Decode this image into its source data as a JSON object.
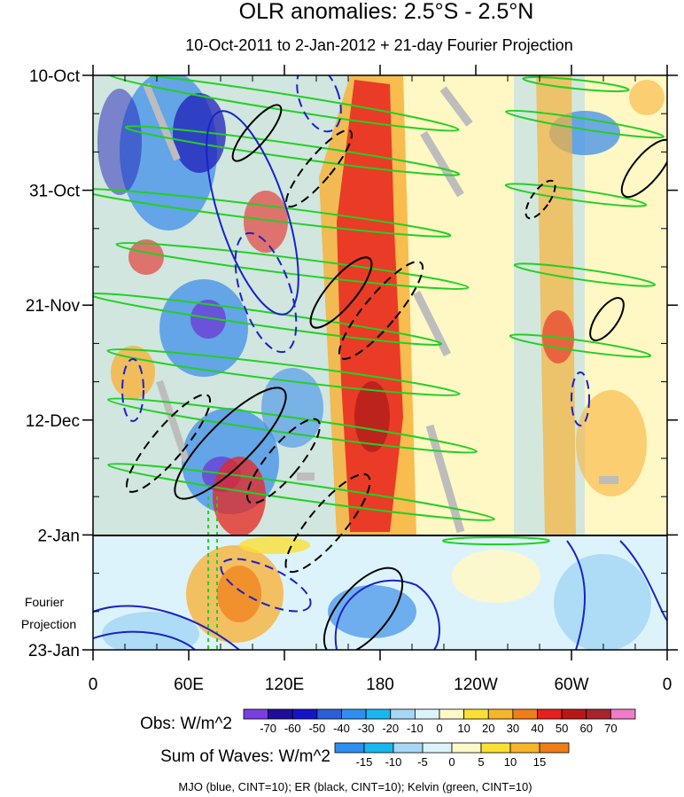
{
  "chart_data": {
    "type": "heatmap",
    "title": "OLR anomalies: 2.5°S - 2.5°N",
    "subtitle": "10-Oct-2011 to 2-Jan-2012 + 21-day Fourier Projection",
    "x_ticks": [
      "0",
      "60E",
      "120E",
      "180",
      "120W",
      "60W",
      "0"
    ],
    "y_ticks": [
      "10-Oct",
      "31-Oct",
      "21-Nov",
      "12-Dec",
      "2-Jan",
      "23-Jan"
    ],
    "projection_label": [
      "Fourier",
      "Projection"
    ],
    "colors": {
      "neg3": "#6a3fd4",
      "neg2": "#1f1fb8",
      "neg1": "#3f8fe8",
      "neg0": "#a9d8f5",
      "pos0": "#fff7bf",
      "pos1": "#f7b23b",
      "pos2": "#e8241f",
      "pos3": "#a81a1a",
      "mjo": "#1a22c8",
      "er": "#000000",
      "kelvin": "#22d022",
      "missing": "#bdbdbd"
    },
    "obs_colorbar": {
      "label": "Obs: W/m^2",
      "ticks": [
        "-70",
        "-60",
        "-50",
        "-40",
        "-30",
        "-20",
        "-10",
        "0",
        "10",
        "20",
        "30",
        "40",
        "50",
        "60",
        "70"
      ],
      "colors": [
        "#7a3ee0",
        "#1e0e9a",
        "#1414c8",
        "#2a5fd8",
        "#2f8ff0",
        "#1ab6f0",
        "#a6d7f5",
        "#dcf3fb",
        "#fff8c8",
        "#fbe033",
        "#f7b52c",
        "#f07d17",
        "#e6201d",
        "#b81718",
        "#a8232d",
        "#f07bc8"
      ]
    },
    "waves_colorbar": {
      "label": "Sum of Waves: W/m^2",
      "ticks": [
        "-15",
        "-10",
        "-5",
        "0",
        "5",
        "10",
        "15"
      ],
      "colors": [
        "#2f8ff0",
        "#1ab6f0",
        "#a6d7f5",
        "#dcf3fb",
        "#fff8c8",
        "#fbe033",
        "#f7b52c",
        "#f07d17"
      ]
    },
    "legend_note": "MJO (blue, CINT=10); ER (black, CINT=10); Kelvin (green, CINT=10)"
  }
}
